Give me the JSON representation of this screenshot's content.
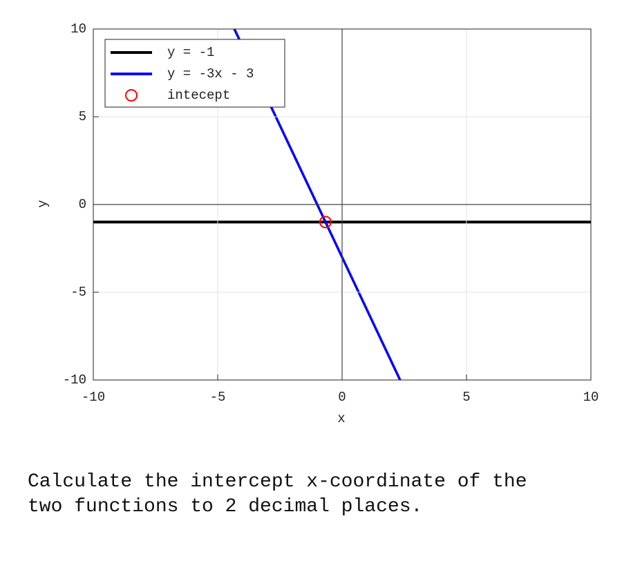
{
  "chart_data": {
    "type": "line",
    "xlabel": "x",
    "ylabel": "y",
    "xlim": [
      -10,
      10
    ],
    "ylim": [
      -10,
      10
    ],
    "xticks": [
      -10,
      -5,
      0,
      5,
      10
    ],
    "yticks": [
      -10,
      -5,
      0,
      5,
      10
    ],
    "grid": true,
    "legend": "upper left",
    "series": [
      {
        "name": "y = -1",
        "color": "#000000",
        "type": "line",
        "x": [
          -10,
          10
        ],
        "values": [
          -1,
          -1
        ]
      },
      {
        "name": "y = -3x - 3",
        "color": "#0000ff",
        "type": "line",
        "x": [
          -4.33,
          2.33
        ],
        "values": [
          10,
          -10
        ]
      },
      {
        "name": "intecept",
        "color": "#ff0000",
        "type": "scatter",
        "x": [
          -0.67
        ],
        "values": [
          -1
        ]
      }
    ]
  },
  "question": [
    "Calculate the intercept x-coordinate of the",
    "two functions to 2 decimal places."
  ]
}
